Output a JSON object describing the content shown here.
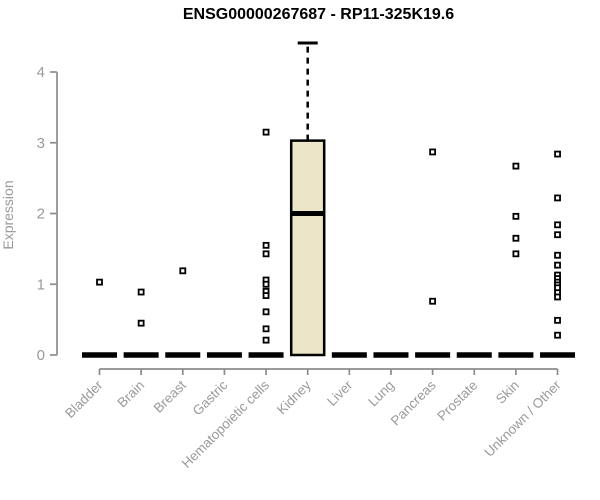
{
  "chart_data": {
    "type": "boxplot",
    "title": "ENSG00000267687 - RP11-325K19.6",
    "ylabel": "Expression",
    "xlabel": "",
    "ylim": [
      0,
      4.45
    ],
    "yticks": [
      0,
      1,
      2,
      3,
      4
    ],
    "grid": false,
    "legend": "none",
    "categories": [
      "Bladder",
      "Brain",
      "Breast",
      "Gastric",
      "Hematopoietic cells",
      "Kidney",
      "Liver",
      "Lung",
      "Pancreas",
      "Prostate",
      "Skin",
      "Unknown / Other"
    ],
    "boxes": [
      {
        "category": "Bladder",
        "median": 0,
        "q1": 0,
        "q3": 0,
        "whisker_low": 0,
        "whisker_high": 0,
        "outliers": [
          1.03
        ]
      },
      {
        "category": "Brain",
        "median": 0,
        "q1": 0,
        "q3": 0,
        "whisker_low": 0,
        "whisker_high": 0,
        "outliers": [
          0.89,
          0.45
        ]
      },
      {
        "category": "Breast",
        "median": 0,
        "q1": 0,
        "q3": 0,
        "whisker_low": 0,
        "whisker_high": 0,
        "outliers": [
          1.19
        ]
      },
      {
        "category": "Gastric",
        "median": 0,
        "q1": 0,
        "q3": 0,
        "whisker_low": 0,
        "whisker_high": 0,
        "outliers": []
      },
      {
        "category": "Hematopoietic cells",
        "median": 0,
        "q1": 0,
        "q3": 0,
        "whisker_low": 0,
        "whisker_high": 0,
        "outliers": [
          3.15,
          1.55,
          1.43,
          1.06,
          1.0,
          0.9,
          0.84,
          0.61,
          0.37,
          0.21
        ]
      },
      {
        "category": "Kidney",
        "median": 2.0,
        "q1": 0,
        "q3": 3.03,
        "whisker_low": 0,
        "whisker_high": 4.41,
        "outliers": []
      },
      {
        "category": "Liver",
        "median": 0,
        "q1": 0,
        "q3": 0,
        "whisker_low": 0,
        "whisker_high": 0,
        "outliers": []
      },
      {
        "category": "Lung",
        "median": 0,
        "q1": 0,
        "q3": 0,
        "whisker_low": 0,
        "whisker_high": 0,
        "outliers": []
      },
      {
        "category": "Pancreas",
        "median": 0,
        "q1": 0,
        "q3": 0,
        "whisker_low": 0,
        "whisker_high": 0,
        "outliers": [
          2.87,
          0.76
        ]
      },
      {
        "category": "Prostate",
        "median": 0,
        "q1": 0,
        "q3": 0,
        "whisker_low": 0,
        "whisker_high": 0,
        "outliers": []
      },
      {
        "category": "Skin",
        "median": 0,
        "q1": 0,
        "q3": 0,
        "whisker_low": 0,
        "whisker_high": 0,
        "outliers": [
          2.67,
          1.96,
          1.65,
          1.43
        ]
      },
      {
        "category": "Unknown / Other",
        "median": 0,
        "q1": 0,
        "q3": 0,
        "whisker_low": 0,
        "whisker_high": 0,
        "outliers": [
          2.84,
          2.22,
          1.84,
          1.7,
          1.41,
          1.27,
          1.13,
          1.08,
          1.03,
          0.99,
          0.95,
          0.88,
          0.82,
          0.49,
          0.28
        ]
      }
    ],
    "colors": {
      "box_fill": "#ece5c7",
      "box_stroke": "#000000",
      "zero_bar": "#000000",
      "outlier_stroke": "#000000",
      "outlier_fill": "#ffffff",
      "axis": "#8c8c8c",
      "tick_label": "#9a9a9a",
      "title": "#000000"
    }
  }
}
